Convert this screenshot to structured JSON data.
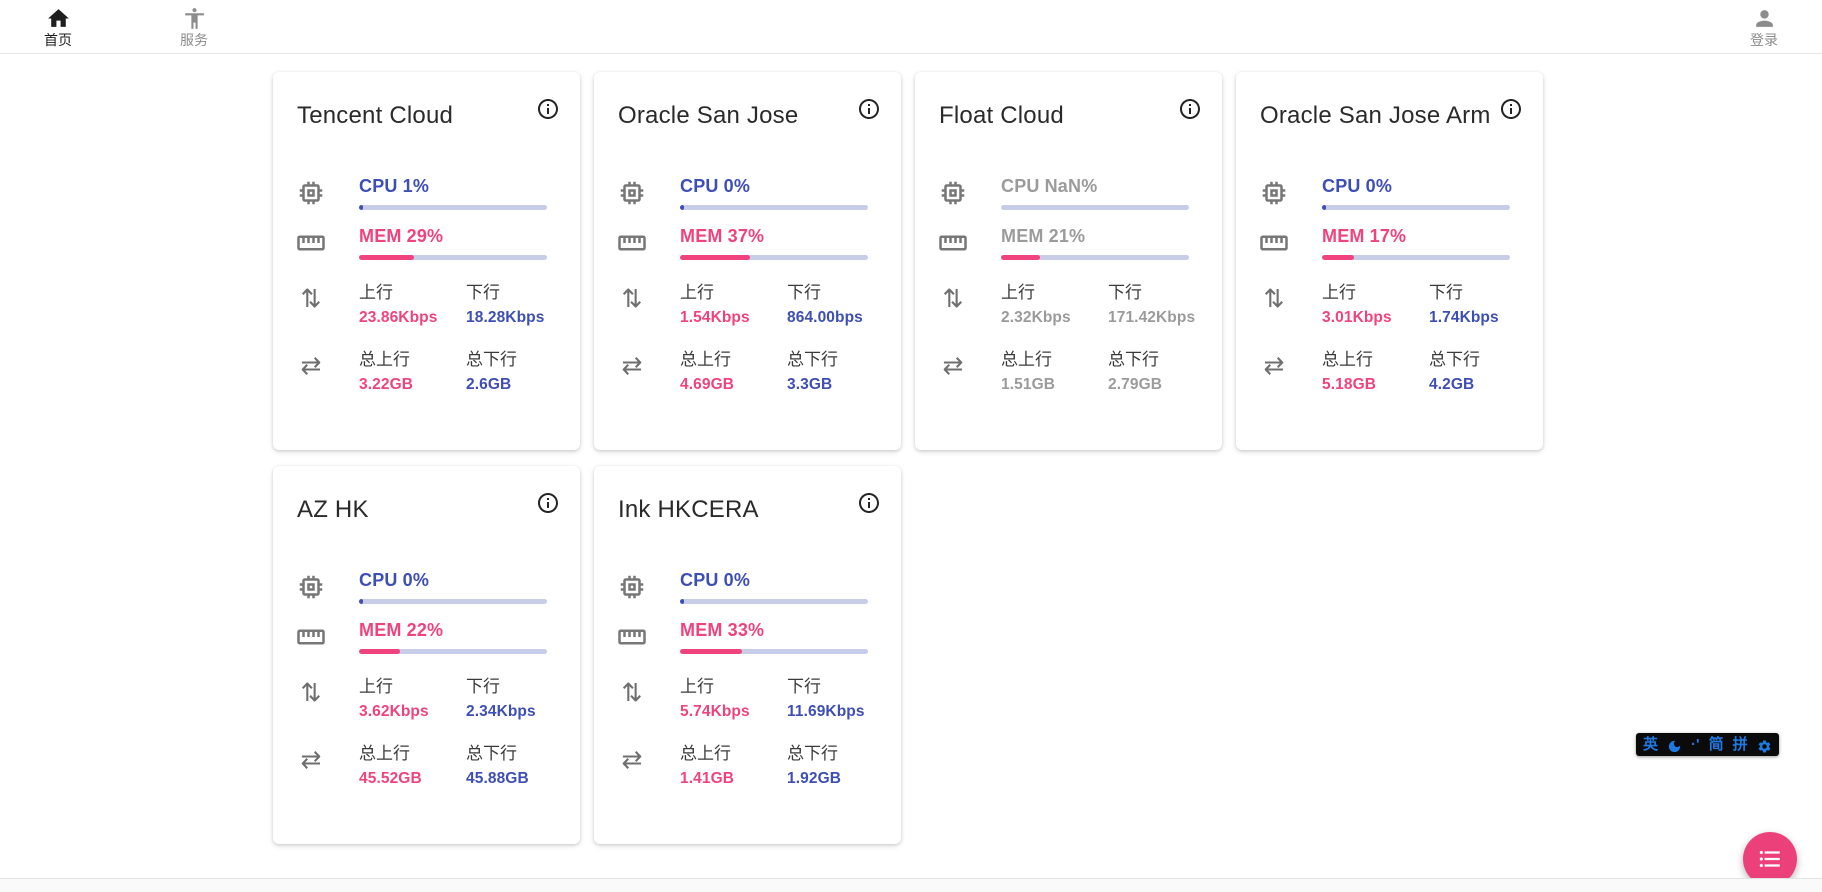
{
  "nav": {
    "home": {
      "label": "首页",
      "icon": "home-icon"
    },
    "services": {
      "label": "服务",
      "icon": "accessibility-icon"
    },
    "login": {
      "label": "登录",
      "icon": "person-icon"
    }
  },
  "stat_labels": {
    "cpu": "CPU",
    "mem": "MEM",
    "upload": "上行",
    "download": "下行",
    "total_upload": "总上行",
    "total_download": "总下行"
  },
  "servers": [
    {
      "name": "Tencent Cloud",
      "cpu": "1%",
      "cpu_pct": 1,
      "mem": "29%",
      "mem_pct": 29,
      "upload": "23.86Kbps",
      "download": "18.28Kbps",
      "total_upload": "3.22GB",
      "total_download": "2.6GB",
      "offline": false
    },
    {
      "name": "Oracle San Jose",
      "cpu": "0%",
      "cpu_pct": 0,
      "mem": "37%",
      "mem_pct": 37,
      "upload": "1.54Kbps",
      "download": "864.00bps",
      "total_upload": "4.69GB",
      "total_download": "3.3GB",
      "offline": false
    },
    {
      "name": "Float Cloud",
      "cpu": "NaN%",
      "cpu_pct": null,
      "mem": "21%",
      "mem_pct": 21,
      "upload": "2.32Kbps",
      "download": "171.42Kbps",
      "total_upload": "1.51GB",
      "total_download": "2.79GB",
      "offline": true
    },
    {
      "name": "Oracle San Jose Arm",
      "cpu": "0%",
      "cpu_pct": 0,
      "mem": "17%",
      "mem_pct": 17,
      "upload": "3.01Kbps",
      "download": "1.74Kbps",
      "total_upload": "5.18GB",
      "total_download": "4.2GB",
      "offline": false
    },
    {
      "name": "AZ HK",
      "cpu": "0%",
      "cpu_pct": 0,
      "mem": "22%",
      "mem_pct": 22,
      "upload": "3.62Kbps",
      "download": "2.34Kbps",
      "total_upload": "45.52GB",
      "total_download": "45.88GB",
      "offline": false
    },
    {
      "name": "Ink HKCERA",
      "cpu": "0%",
      "cpu_pct": 0,
      "mem": "33%",
      "mem_pct": 33,
      "upload": "5.74Kbps",
      "download": "11.69Kbps",
      "total_upload": "1.41GB",
      "total_download": "1.92GB",
      "offline": false
    }
  ],
  "icons": {
    "swap_vertical": "⇅",
    "swap_horizontal": "⇄"
  },
  "ime_toolbar": {
    "english": "英",
    "moon": "moon-icon",
    "punctuation": "·'",
    "simplified": "简",
    "pinyin": "拼",
    "settings": "gear-icon"
  },
  "fab": {
    "icon": "list-icon"
  },
  "colors": {
    "accent_indigo": "#3d4eb5",
    "accent_pink": "#f0437e",
    "bar_track": "#c7cce9",
    "fab_pink": "#ec407a",
    "offline_gray": "#9b9b9b",
    "ime_blue": "#1d7ae2"
  }
}
